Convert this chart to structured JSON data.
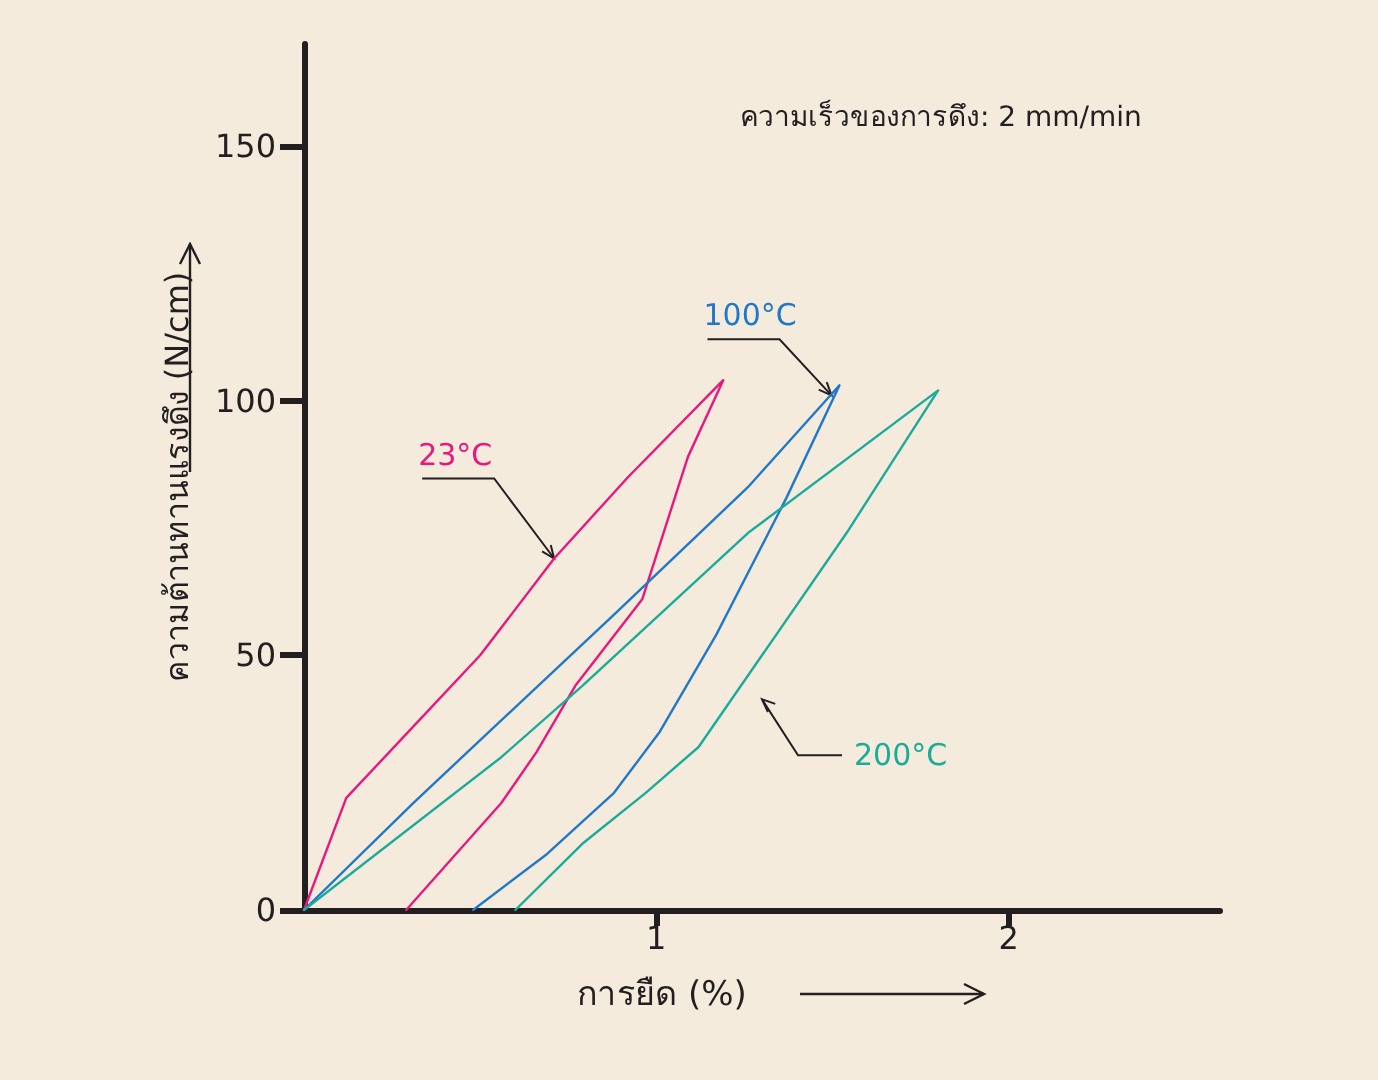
{
  "chart_data": {
    "type": "line",
    "xlabel": "การยืด (%)",
    "ylabel": "ความต้านทานแรงดึง (N/cm)",
    "annotations": [
      "ความเร็วของการดึง: 2 mm/min"
    ],
    "xlim": [
      0,
      2.6
    ],
    "xticks": [
      1,
      2
    ],
    "ylim": [
      0,
      170
    ],
    "yticks": [
      0,
      50,
      100,
      150
    ],
    "grid": false,
    "legend": false,
    "marker": "none",
    "line_style": "solid",
    "series": [
      {
        "name": "23°C",
        "color": "#e8187f",
        "x": [
          0,
          0.12,
          0.31,
          0.5,
          0.71,
          0.92,
          1.19,
          1.09,
          0.96,
          0.77,
          0.66,
          0.56,
          0.29
        ],
        "values": [
          0,
          22,
          36,
          50,
          69,
          85,
          104,
          89,
          61,
          44,
          31,
          21,
          0
        ]
      },
      {
        "name": "100°C",
        "color": "#1f78c8",
        "x": [
          0,
          0.31,
          0.88,
          1.26,
          1.52,
          1.37,
          1.17,
          1.01,
          0.88,
          0.69,
          0.48
        ],
        "values": [
          0,
          21,
          58,
          83,
          103,
          81,
          54,
          35,
          23,
          11,
          0
        ]
      },
      {
        "name": "200°C",
        "color": "#1bab9b",
        "x": [
          0,
          0.56,
          0.79,
          1.26,
          1.8,
          1.54,
          1.3,
          1.12,
          0.97,
          0.79,
          0.6
        ],
        "values": [
          0,
          30,
          44,
          74,
          102,
          74,
          50,
          32,
          23,
          13,
          0
        ]
      }
    ]
  }
}
